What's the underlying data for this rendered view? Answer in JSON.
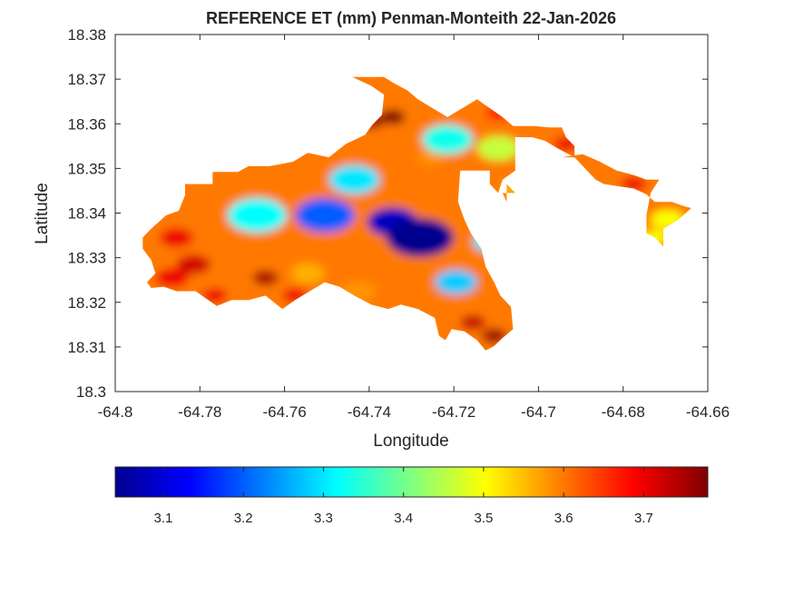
{
  "title": "REFERENCE ET (mm) Penman-Monteith 22-Jan-2026",
  "chart_data": {
    "type": "heatmap",
    "title": "REFERENCE ET (mm) Penman-Monteith 22-Jan-2026",
    "xlabel": "Longitude",
    "ylabel": "Latitude",
    "xlim": [
      -64.8,
      -64.66
    ],
    "ylim": [
      18.3,
      18.38
    ],
    "xticks": [
      -64.8,
      -64.78,
      -64.76,
      -64.74,
      -64.72,
      -64.7,
      -64.68,
      -64.66
    ],
    "xtick_labels": [
      "-64.8",
      "-64.78",
      "-64.76",
      "-64.74",
      "-64.72",
      "-64.7",
      "-64.68",
      "-64.66"
    ],
    "yticks": [
      18.3,
      18.31,
      18.32,
      18.33,
      18.34,
      18.35,
      18.36,
      18.37,
      18.38
    ],
    "ytick_labels": [
      "18.3",
      "18.31",
      "18.32",
      "18.33",
      "18.34",
      "18.35",
      "18.36",
      "18.37",
      "18.38"
    ],
    "colormap": "jet",
    "colorbar": {
      "range": [
        3.04,
        3.78
      ],
      "ticks": [
        3.1,
        3.2,
        3.3,
        3.4,
        3.5,
        3.6,
        3.7
      ],
      "tick_labels": [
        "3.1",
        "3.2",
        "3.3",
        "3.4",
        "3.5",
        "3.6",
        "3.7"
      ],
      "placement": "bottom"
    },
    "grid": false,
    "outline": [
      [
        -64.7915,
        18.3365
      ],
      [
        -64.788,
        18.3395
      ],
      [
        -64.785,
        18.3405
      ],
      [
        -64.7835,
        18.344
      ],
      [
        -64.7835,
        18.3465
      ],
      [
        -64.777,
        18.3465
      ],
      [
        -64.777,
        18.3492
      ],
      [
        -64.771,
        18.3492
      ],
      [
        -64.7685,
        18.3505
      ],
      [
        -64.7635,
        18.3505
      ],
      [
        -64.758,
        18.3515
      ],
      [
        -64.7545,
        18.3535
      ],
      [
        -64.7495,
        18.3525
      ],
      [
        -64.7455,
        18.3555
      ],
      [
        -64.741,
        18.3575
      ],
      [
        -64.7395,
        18.3595
      ],
      [
        -64.737,
        18.362
      ],
      [
        -64.7365,
        18.3665
      ],
      [
        -64.7395,
        18.3685
      ],
      [
        -64.744,
        18.3705
      ],
      [
        -64.7365,
        18.3705
      ],
      [
        -64.734,
        18.369
      ],
      [
        -64.731,
        18.3675
      ],
      [
        -64.7285,
        18.3655
      ],
      [
        -64.725,
        18.3635
      ],
      [
        -64.7215,
        18.3615
      ],
      [
        -64.718,
        18.3635
      ],
      [
        -64.7145,
        18.3655
      ],
      [
        -64.7115,
        18.3635
      ],
      [
        -64.7085,
        18.3615
      ],
      [
        -64.706,
        18.3595
      ],
      [
        -64.701,
        18.3595
      ],
      [
        -64.6975,
        18.3592
      ],
      [
        -64.6945,
        18.3592
      ],
      [
        -64.6935,
        18.357
      ],
      [
        -64.6915,
        18.355
      ],
      [
        -64.6915,
        18.3525
      ],
      [
        -64.6955,
        18.3545
      ],
      [
        -64.6985,
        18.3562
      ],
      [
        -64.7015,
        18.357
      ],
      [
        -64.7055,
        18.357
      ],
      [
        -64.7055,
        18.3495
      ],
      [
        -64.7085,
        18.3475
      ],
      [
        -64.7095,
        18.3445
      ],
      [
        -64.7115,
        18.3465
      ],
      [
        -64.7115,
        18.3495
      ],
      [
        -64.7185,
        18.3495
      ],
      [
        -64.719,
        18.3425
      ],
      [
        -64.7175,
        18.3385
      ],
      [
        -64.716,
        18.3355
      ],
      [
        -64.7135,
        18.332
      ],
      [
        -64.7125,
        18.328
      ],
      [
        -64.7105,
        18.3245
      ],
      [
        -64.709,
        18.3215
      ],
      [
        -64.7065,
        18.319
      ],
      [
        -64.706,
        18.314
      ],
      [
        -64.7085,
        18.312
      ],
      [
        -64.7105,
        18.3102
      ],
      [
        -64.7125,
        18.3092
      ],
      [
        -64.7145,
        18.3115
      ],
      [
        -64.7175,
        18.3135
      ],
      [
        -64.7205,
        18.314
      ],
      [
        -64.722,
        18.3115
      ],
      [
        -64.7235,
        18.3125
      ],
      [
        -64.7245,
        18.3165
      ],
      [
        -64.7285,
        18.3185
      ],
      [
        -64.7325,
        18.3195
      ],
      [
        -64.7355,
        18.3185
      ],
      [
        -64.7395,
        18.3195
      ],
      [
        -64.7435,
        18.3215
      ],
      [
        -64.747,
        18.3235
      ],
      [
        -64.7505,
        18.3245
      ],
      [
        -64.7535,
        18.3228
      ],
      [
        -64.7575,
        18.3205
      ],
      [
        -64.7605,
        18.3185
      ],
      [
        -64.7645,
        18.3215
      ],
      [
        -64.7685,
        18.3205
      ],
      [
        -64.7725,
        18.3205
      ],
      [
        -64.776,
        18.3192
      ],
      [
        -64.781,
        18.3225
      ],
      [
        -64.7855,
        18.3225
      ],
      [
        -64.7885,
        18.3235
      ],
      [
        -64.7915,
        18.3232
      ],
      [
        -64.7925,
        18.3245
      ],
      [
        -64.7905,
        18.3265
      ],
      [
        -64.7915,
        18.3295
      ],
      [
        -64.7935,
        18.332
      ],
      [
        -64.7935,
        18.3345
      ]
    ],
    "secondary_outlines": [
      [
        [
          -64.6945,
          18.3525
        ],
        [
          -64.6915,
          18.3525
        ],
        [
          -64.6865,
          18.3475
        ],
        [
          -64.6845,
          18.3465
        ],
        [
          -64.6775,
          18.3455
        ],
        [
          -64.6745,
          18.3442
        ],
        [
          -64.6725,
          18.3425
        ],
        [
          -64.6685,
          18.3425
        ],
        [
          -64.6655,
          18.3415
        ],
        [
          -64.6642,
          18.3412
        ],
        [
          -64.664,
          18.341
        ],
        [
          -64.667,
          18.3385
        ],
        [
          -64.6705,
          18.3365
        ],
        [
          -64.6705,
          18.3325
        ],
        [
          -64.6725,
          18.3345
        ],
        [
          -64.6745,
          18.3355
        ],
        [
          -64.6745,
          18.3395
        ],
        [
          -64.6735,
          18.3445
        ],
        [
          -64.6715,
          18.3475
        ],
        [
          -64.6745,
          18.3475
        ],
        [
          -64.6775,
          18.3485
        ],
        [
          -64.6815,
          18.3495
        ],
        [
          -64.6855,
          18.3515
        ],
        [
          -64.6895,
          18.3532
        ]
      ],
      [
        [
          -64.7075,
          18.3465
        ],
        [
          -64.7055,
          18.3445
        ],
        [
          -64.7085,
          18.3445
        ],
        [
          -64.7075,
          18.3425
        ]
      ]
    ],
    "hotspots": [
      {
        "x": -64.728,
        "y": 18.3345,
        "value": 3.04,
        "r": 0.008
      },
      {
        "x": -64.7345,
        "y": 18.338,
        "value": 3.08,
        "r": 0.006
      },
      {
        "x": -64.7505,
        "y": 18.3395,
        "value": 3.2,
        "r": 0.007
      },
      {
        "x": -64.7665,
        "y": 18.3395,
        "value": 3.32,
        "r": 0.007
      },
      {
        "x": -64.7195,
        "y": 18.3245,
        "value": 3.28,
        "r": 0.005
      },
      {
        "x": -64.7215,
        "y": 18.3565,
        "value": 3.33,
        "r": 0.006
      },
      {
        "x": -64.7435,
        "y": 18.3475,
        "value": 3.3,
        "r": 0.006
      },
      {
        "x": -64.7115,
        "y": 18.3335,
        "value": 3.3,
        "r": 0.004
      },
      {
        "x": -64.7095,
        "y": 18.3545,
        "value": 3.46,
        "r": 0.005
      },
      {
        "x": -64.7255,
        "y": 18.3525,
        "value": 3.58,
        "r": 0.003
      },
      {
        "x": -64.7395,
        "y": 18.3605,
        "value": 3.76,
        "r": 0.003
      },
      {
        "x": -64.7345,
        "y": 18.3615,
        "value": 3.78,
        "r": 0.003
      },
      {
        "x": -64.7815,
        "y": 18.3285,
        "value": 3.72,
        "r": 0.004
      },
      {
        "x": -64.7865,
        "y": 18.3255,
        "value": 3.7,
        "r": 0.004
      },
      {
        "x": -64.7645,
        "y": 18.3255,
        "value": 3.75,
        "r": 0.003
      },
      {
        "x": -64.7765,
        "y": 18.3215,
        "value": 3.7,
        "r": 0.003
      },
      {
        "x": -64.7575,
        "y": 18.3215,
        "value": 3.7,
        "r": 0.003
      },
      {
        "x": -64.7855,
        "y": 18.3345,
        "value": 3.7,
        "r": 0.004
      },
      {
        "x": -64.7105,
        "y": 18.3125,
        "value": 3.76,
        "r": 0.003
      },
      {
        "x": -64.7155,
        "y": 18.3155,
        "value": 3.73,
        "r": 0.003
      },
      {
        "x": -64.7315,
        "y": 18.3215,
        "value": 3.6,
        "r": 0.004
      },
      {
        "x": -64.7425,
        "y": 18.3225,
        "value": 3.58,
        "r": 0.004
      },
      {
        "x": -64.7545,
        "y": 18.3265,
        "value": 3.56,
        "r": 0.004
      },
      {
        "x": -64.7095,
        "y": 18.3625,
        "value": 3.68,
        "r": 0.003
      },
      {
        "x": -64.6995,
        "y": 18.3585,
        "value": 3.6,
        "r": 0.003
      },
      {
        "x": -64.6935,
        "y": 18.3555,
        "value": 3.7,
        "r": 0.003
      },
      {
        "x": -64.6775,
        "y": 18.3465,
        "value": 3.7,
        "r": 0.003
      },
      {
        "x": -64.6695,
        "y": 18.3385,
        "value": 3.5,
        "r": 0.004
      },
      {
        "x": -64.6725,
        "y": 18.3345,
        "value": 3.5,
        "r": 0.003
      },
      {
        "x": -64.7065,
        "y": 18.3455,
        "value": 3.55,
        "r": 0.002
      }
    ]
  }
}
